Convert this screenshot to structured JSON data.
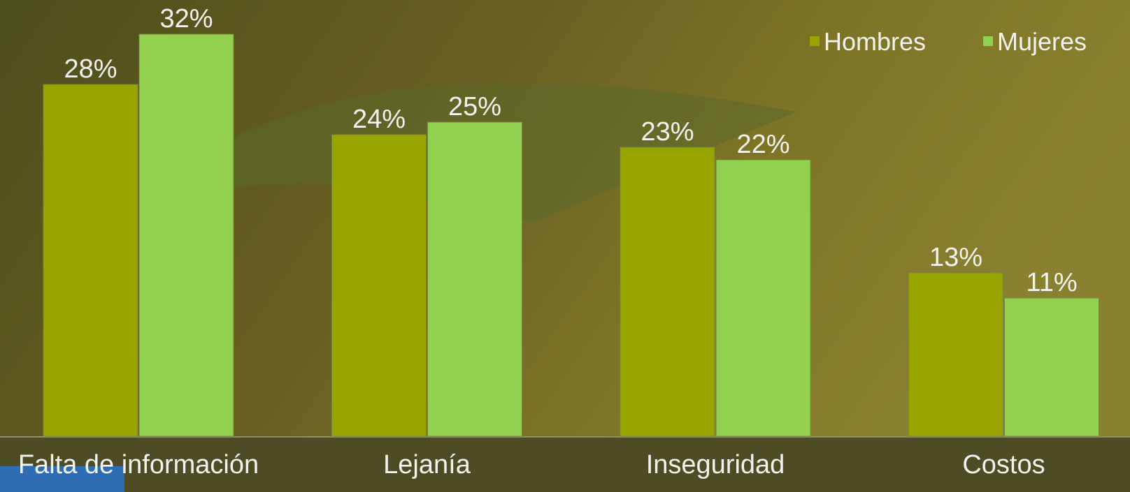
{
  "chart_data": {
    "type": "bar",
    "categories": [
      "Falta de información",
      "Lejanía",
      "Inseguridad",
      "Costos"
    ],
    "series": [
      {
        "name": "Hombres",
        "color": "#98a500",
        "values": [
          28,
          24,
          23,
          13
        ],
        "value_labels": [
          "28%",
          "24%",
          "23%",
          "13%"
        ]
      },
      {
        "name": "Mujeres",
        "color": "#92d050",
        "values": [
          32,
          25,
          22,
          11
        ],
        "value_labels": [
          "32%",
          "25%",
          "22%",
          "11%"
        ]
      }
    ],
    "legend": "top-right"
  }
}
